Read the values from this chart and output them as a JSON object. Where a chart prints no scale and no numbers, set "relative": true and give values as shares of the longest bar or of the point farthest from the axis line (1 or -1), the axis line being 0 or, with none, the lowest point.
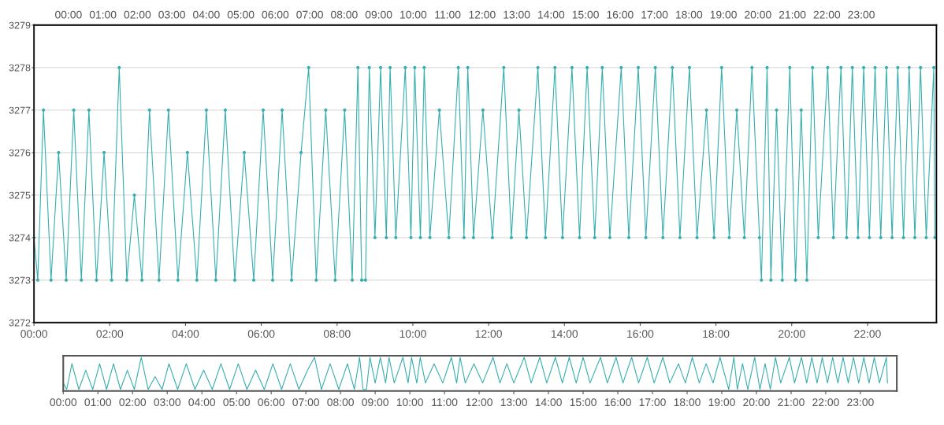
{
  "chart_data": [
    {
      "type": "line",
      "grid": "y",
      "marker": "circle",
      "x": [
        0.0,
        0.1,
        0.25,
        0.45,
        0.65,
        0.85,
        1.05,
        1.25,
        1.45,
        1.65,
        1.85,
        2.05,
        2.25,
        2.45,
        2.65,
        2.85,
        3.05,
        3.3,
        3.55,
        3.8,
        4.05,
        4.3,
        4.55,
        4.8,
        5.05,
        5.3,
        5.55,
        5.8,
        6.05,
        6.3,
        6.55,
        6.8,
        7.05,
        7.25,
        7.45,
        7.7,
        7.95,
        8.2,
        8.4,
        8.55,
        8.65,
        8.75,
        8.85,
        9.0,
        9.15,
        9.3,
        9.4,
        9.55,
        9.8,
        9.95,
        10.05,
        10.2,
        10.3,
        10.45,
        10.7,
        10.95,
        11.2,
        11.35,
        11.45,
        11.6,
        11.85,
        12.1,
        12.4,
        12.6,
        12.8,
        13.0,
        13.3,
        13.5,
        13.75,
        13.95,
        14.2,
        14.4,
        14.6,
        14.8,
        15.0,
        15.2,
        15.5,
        15.7,
        15.95,
        16.15,
        16.4,
        16.6,
        16.85,
        17.05,
        17.3,
        17.5,
        17.75,
        17.95,
        18.15,
        18.35,
        18.55,
        18.75,
        18.95,
        19.15,
        19.2,
        19.35,
        19.45,
        19.6,
        19.75,
        19.95,
        20.1,
        20.25,
        20.4,
        20.55,
        20.7,
        20.95,
        21.1,
        21.3,
        21.45,
        21.6,
        21.75,
        21.9,
        22.05,
        22.2,
        22.35,
        22.5,
        22.65,
        22.8,
        22.95,
        23.1,
        23.25,
        23.4,
        23.55,
        23.75,
        23.78
      ],
      "series": [
        {
          "color": "#36aeb0",
          "values": [
            3274,
            3273,
            3277,
            3273,
            3276,
            3273,
            3277,
            3273,
            3277,
            3273,
            3276,
            3273,
            3278,
            3273,
            3275,
            3273,
            3277,
            3273,
            3277,
            3273,
            3276,
            3273,
            3277,
            3273,
            3277,
            3273,
            3276,
            3273,
            3277,
            3273,
            3277,
            3273,
            3276,
            3278,
            3273,
            3277,
            3273,
            3277,
            3273,
            3278,
            3273,
            3273,
            3278,
            3274,
            3278,
            3274,
            3278,
            3274,
            3278,
            3274,
            3278,
            3274,
            3278,
            3274,
            3277,
            3274,
            3278,
            3274,
            3278,
            3274,
            3277,
            3274,
            3278,
            3274,
            3277,
            3274,
            3278,
            3274,
            3278,
            3274,
            3278,
            3274,
            3278,
            3274,
            3278,
            3274,
            3278,
            3274,
            3278,
            3274,
            3278,
            3274,
            3278,
            3274,
            3278,
            3274,
            3277,
            3274,
            3278,
            3274,
            3277,
            3274,
            3278,
            3274,
            3273,
            3278,
            3273,
            3277,
            3273,
            3278,
            3273,
            3277,
            3273,
            3278,
            3274,
            3278,
            3274,
            3278,
            3274,
            3278,
            3274,
            3278,
            3274,
            3278,
            3274,
            3278,
            3274,
            3278,
            3274,
            3278,
            3274,
            3278,
            3274,
            3278,
            3274
          ]
        }
      ],
      "xlim": [
        0,
        23.82
      ],
      "xticks": [
        {
          "value": 0,
          "label": "00:00"
        },
        {
          "value": 2,
          "label": "02:00"
        },
        {
          "value": 4,
          "label": "04:00"
        },
        {
          "value": 6,
          "label": "06:00"
        },
        {
          "value": 8,
          "label": "08:00"
        },
        {
          "value": 10,
          "label": "10:00"
        },
        {
          "value": 12,
          "label": "12:00"
        },
        {
          "value": 14,
          "label": "14:00"
        },
        {
          "value": 16,
          "label": "16:00"
        },
        {
          "value": 18,
          "label": "18:00"
        },
        {
          "value": 20,
          "label": "20:00"
        },
        {
          "value": 22,
          "label": "22:00"
        }
      ],
      "ylim": [
        3272,
        3279
      ],
      "yticks": [
        3272,
        3273,
        3274,
        3275,
        3276,
        3277,
        3278,
        3279
      ],
      "x2lim": [
        -1.0,
        25.18
      ],
      "x2ticks": [
        {
          "value": 0,
          "label": "00:00"
        },
        {
          "value": 1,
          "label": "01:00"
        },
        {
          "value": 2,
          "label": "02:00"
        },
        {
          "value": 3,
          "label": "03:00"
        },
        {
          "value": 4,
          "label": "04:00"
        },
        {
          "value": 5,
          "label": "05:00"
        },
        {
          "value": 6,
          "label": "06:00"
        },
        {
          "value": 7,
          "label": "07:00"
        },
        {
          "value": 8,
          "label": "08:00"
        },
        {
          "value": 9,
          "label": "09:00"
        },
        {
          "value": 10,
          "label": "10:00"
        },
        {
          "value": 11,
          "label": "11:00"
        },
        {
          "value": 12,
          "label": "12:00"
        },
        {
          "value": 13,
          "label": "13:00"
        },
        {
          "value": 14,
          "label": "14:00"
        },
        {
          "value": 15,
          "label": "15:00"
        },
        {
          "value": 16,
          "label": "16:00"
        },
        {
          "value": 17,
          "label": "17:00"
        },
        {
          "value": 18,
          "label": "18:00"
        },
        {
          "value": 19,
          "label": "19:00"
        },
        {
          "value": 20,
          "label": "20:00"
        },
        {
          "value": 21,
          "label": "21:00"
        },
        {
          "value": 22,
          "label": "22:00"
        },
        {
          "value": 23,
          "label": "23:00"
        }
      ]
    },
    {
      "type": "line",
      "relative": true,
      "x": [
        0.0,
        0.1,
        0.25,
        0.45,
        0.65,
        0.85,
        1.05,
        1.25,
        1.45,
        1.65,
        1.85,
        2.05,
        2.25,
        2.45,
        2.65,
        2.85,
        3.05,
        3.3,
        3.55,
        3.8,
        4.05,
        4.3,
        4.55,
        4.8,
        5.05,
        5.3,
        5.55,
        5.8,
        6.05,
        6.3,
        6.55,
        6.8,
        7.05,
        7.25,
        7.45,
        7.7,
        7.95,
        8.2,
        8.4,
        8.55,
        8.65,
        8.75,
        8.85,
        9.0,
        9.15,
        9.3,
        9.4,
        9.55,
        9.8,
        9.95,
        10.05,
        10.2,
        10.3,
        10.45,
        10.7,
        10.95,
        11.2,
        11.35,
        11.45,
        11.6,
        11.85,
        12.1,
        12.4,
        12.6,
        12.8,
        13.0,
        13.3,
        13.5,
        13.75,
        13.95,
        14.2,
        14.4,
        14.6,
        14.8,
        15.0,
        15.2,
        15.5,
        15.7,
        15.95,
        16.15,
        16.4,
        16.6,
        16.85,
        17.05,
        17.3,
        17.5,
        17.75,
        17.95,
        18.15,
        18.35,
        18.55,
        18.75,
        18.95,
        19.15,
        19.2,
        19.35,
        19.45,
        19.6,
        19.75,
        19.95,
        20.1,
        20.25,
        20.4,
        20.55,
        20.7,
        20.95,
        21.1,
        21.3,
        21.45,
        21.6,
        21.75,
        21.9,
        22.05,
        22.2,
        22.35,
        22.5,
        22.65,
        22.8,
        22.95,
        23.1,
        23.25,
        23.4,
        23.55,
        23.75,
        23.78
      ],
      "series": [
        {
          "color": "#36aeb0",
          "values": [
            0.2,
            0,
            0.8,
            0,
            0.6,
            0,
            0.8,
            0,
            0.8,
            0,
            0.6,
            0,
            1,
            0,
            0.4,
            0,
            0.8,
            0,
            0.8,
            0,
            0.6,
            0,
            0.8,
            0,
            0.8,
            0,
            0.6,
            0,
            0.8,
            0,
            0.8,
            0,
            0.6,
            1,
            0,
            0.8,
            0,
            0.8,
            0,
            1,
            0,
            0,
            1,
            0.2,
            1,
            0.2,
            1,
            0.2,
            1,
            0.2,
            1,
            0.2,
            1,
            0.2,
            0.8,
            0.2,
            1,
            0.2,
            1,
            0.2,
            0.8,
            0.2,
            1,
            0.2,
            0.8,
            0.2,
            1,
            0.2,
            1,
            0.2,
            1,
            0.2,
            1,
            0.2,
            1,
            0.2,
            1,
            0.2,
            1,
            0.2,
            1,
            0.2,
            1,
            0.2,
            1,
            0.2,
            0.8,
            0.2,
            1,
            0.2,
            0.8,
            0.2,
            1,
            0.2,
            0,
            1,
            0,
            0.8,
            0,
            1,
            0,
            0.8,
            0,
            1,
            0.2,
            1,
            0.2,
            1,
            0.2,
            1,
            0.2,
            1,
            0.2,
            1,
            0.2,
            1,
            0.2,
            1,
            0.2,
            1,
            0.2,
            1,
            0.2,
            1,
            0.2
          ]
        }
      ],
      "xlim": [
        0,
        24.05
      ],
      "xticks": [
        {
          "value": 0,
          "label": "00:00"
        },
        {
          "value": 1,
          "label": "01:00"
        },
        {
          "value": 2,
          "label": "02:00"
        },
        {
          "value": 3,
          "label": "03:00"
        },
        {
          "value": 4,
          "label": "04:00"
        },
        {
          "value": 5,
          "label": "05:00"
        },
        {
          "value": 6,
          "label": "06:00"
        },
        {
          "value": 7,
          "label": "07:00"
        },
        {
          "value": 8,
          "label": "08:00"
        },
        {
          "value": 9,
          "label": "09:00"
        },
        {
          "value": 10,
          "label": "10:00"
        },
        {
          "value": 11,
          "label": "11:00"
        },
        {
          "value": 12,
          "label": "12:00"
        },
        {
          "value": 13,
          "label": "13:00"
        },
        {
          "value": 14,
          "label": "14:00"
        },
        {
          "value": 15,
          "label": "15:00"
        },
        {
          "value": 16,
          "label": "16:00"
        },
        {
          "value": 17,
          "label": "17:00"
        },
        {
          "value": 18,
          "label": "18:00"
        },
        {
          "value": 19,
          "label": "19:00"
        },
        {
          "value": 20,
          "label": "20:00"
        },
        {
          "value": 21,
          "label": "21:00"
        },
        {
          "value": 22,
          "label": "22:00"
        },
        {
          "value": 23,
          "label": "23:00"
        }
      ],
      "grid": false
    }
  ]
}
